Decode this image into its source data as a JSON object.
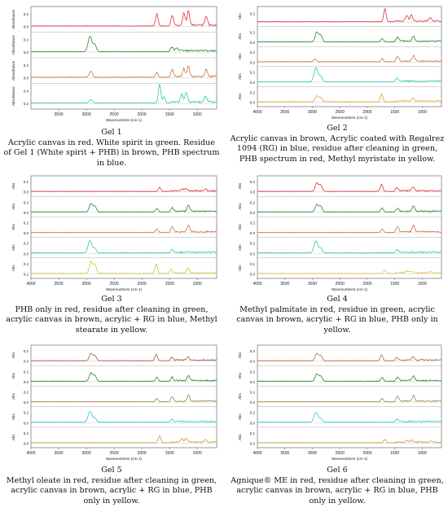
{
  "panels": [
    {
      "gel": "Gel 1",
      "caption": "Acrylic canvas in red. White spirit in green. Residue of Gel 1 (White spirit + PHB) in brown, PHB spectrum in blue.",
      "xlabel": "Wavenumbers (cm-1)",
      "xticks": [
        "3500",
        "3000",
        "2500",
        "2000",
        "1500",
        "1000"
      ],
      "ylabel": "Absorbance",
      "colors": [
        "#e0303a",
        "#1e8a2a",
        "#d2703a",
        "#25c8b0"
      ],
      "rows": [
        {
          "ylabel": "Absorbance",
          "yticks": [
            "0.2",
            "0.0"
          ]
        },
        {
          "ylabel": "Absorbance",
          "yticks": [
            "0.2",
            "0.0"
          ]
        },
        {
          "ylabel": "Absorbance",
          "yticks": [
            "0.2",
            "0.0"
          ]
        },
        {
          "ylabel": "Absorbance",
          "yticks": [
            "0.4",
            "0.2"
          ]
        }
      ]
    },
    {
      "gel": "Gel 2",
      "caption": "Acrylic canvas in brown, Acrylic coated with Regalrez 1094 (RG) in blue, residue after cleaning in green, PHB spectrum in red, Methyl myristate in yellow.",
      "xlabel": "Wavenumbers (cm-1)",
      "xticks": [
        "4000",
        "3500",
        "3000",
        "2500",
        "2000",
        "1500",
        "1000"
      ],
      "ylabel": "Abs",
      "colors": [
        "#e0303a",
        "#1e8a2a",
        "#d2703a",
        "#25c8b0",
        "#e8a020"
      ],
      "rows": [
        {
          "ylabel": "Abs",
          "yticks": [
            "0.2"
          ]
        },
        {
          "ylabel": "Abs",
          "yticks": [
            "0.2",
            "0.0"
          ]
        },
        {
          "ylabel": "Abs",
          "yticks": [
            "0.2",
            "0.0"
          ]
        },
        {
          "ylabel": "Abs",
          "yticks": [
            "0.2",
            "0.0"
          ]
        },
        {
          "ylabel": "Abs",
          "yticks": [
            "0.2",
            "0.0"
          ]
        }
      ]
    },
    {
      "gel": "Gel 3",
      "caption": "PHB only in red, residue after cleaning in green, acrylic canvas in brown, acrylic + RG in blue, Methyl stearate in yellow.",
      "xlabel": "Wavenumbers (cm-1)",
      "xticks": [
        "4000",
        "3500",
        "3000",
        "2500",
        "2000",
        "1500",
        "1000"
      ],
      "ylabel": "Abs",
      "colors": [
        "#e0303a",
        "#1e8a2a",
        "#d2703a",
        "#25c8b0",
        "#d8c030"
      ],
      "rows": [
        {
          "ylabel": "Abs",
          "yticks": [
            "0.1",
            "0.0"
          ]
        },
        {
          "ylabel": "Abs",
          "yticks": [
            "0.2",
            "0.0"
          ]
        },
        {
          "ylabel": "Abs",
          "yticks": [
            "0.2",
            "0.0"
          ]
        },
        {
          "ylabel": "Abs",
          "yticks": [
            "0.2",
            "0.0"
          ]
        },
        {
          "ylabel": "Abs",
          "yticks": [
            "0.4",
            "0.2"
          ]
        }
      ]
    },
    {
      "gel": "Gel 4",
      "caption": "Methyl palmitate in red, residue in green, acrylic canvas in brown, acrylic + RG in blue, PHB only in yellow.",
      "xlabel": "Wavenumbers (cm-1)",
      "xticks": [
        "4000",
        "3500",
        "3000",
        "2500",
        "2000",
        "1500",
        "1000"
      ],
      "ylabel": "Abs",
      "colors": [
        "#e0303a",
        "#1e8a2a",
        "#d2703a",
        "#25c8b0",
        "#e8c040"
      ],
      "rows": [
        {
          "ylabel": "Abs",
          "yticks": [
            "0.2",
            "0.0"
          ]
        },
        {
          "ylabel": "Abs",
          "yticks": [
            "0.2",
            "0.0"
          ]
        },
        {
          "ylabel": "Abs",
          "yticks": [
            "0.2",
            "0.0"
          ]
        },
        {
          "ylabel": "Abs",
          "yticks": [
            "0.2",
            "0.0"
          ]
        },
        {
          "ylabel": "Abs",
          "yticks": [
            "0.1",
            "0.0"
          ]
        }
      ]
    },
    {
      "gel": "Gel 5",
      "caption": "Methyl oleate in red, residue after cleaning in green, acrylic canvas in brown, acrylic + RG in blue, PHB only in yellow.",
      "xlabel": "Wavenumbers (cm-1)",
      "xticks": [
        "4000",
        "3500",
        "3000",
        "2500",
        "2000",
        "1500",
        "1000"
      ],
      "ylabel": "Abs",
      "colors": [
        "#9a5a3a",
        "#1e8a2a",
        "#a88040",
        "#25c8d0",
        "#c8a030"
      ],
      "rows": [
        {
          "ylabel": "Abs",
          "yticks": [
            "0.2",
            "0.0"
          ]
        },
        {
          "ylabel": "Abs",
          "yticks": [
            "0.2",
            "0.0"
          ]
        },
        {
          "ylabel": "Abs",
          "yticks": [
            "0.2",
            "0.0"
          ]
        },
        {
          "ylabel": "Abs",
          "yticks": [
            "0.2",
            "0.0"
          ]
        },
        {
          "ylabel": "Abs",
          "yticks": [
            "0.2",
            "0.0"
          ]
        }
      ]
    },
    {
      "gel": "Gel 6",
      "caption": "Agnique® ME in red, residue after cleaning in green, acrylic canvas in brown, acrylic + RG in blue, PHB only in yellow.",
      "xlabel": "Wavenumbers (cm-1)",
      "xticks": [
        "4000",
        "3500",
        "3000",
        "2500",
        "2000",
        "1500",
        "1000"
      ],
      "ylabel": "Abs",
      "colors": [
        "#b06a40",
        "#1e8a2a",
        "#a88040",
        "#25c8d0",
        "#c8a030"
      ],
      "rows": [
        {
          "ylabel": "Abs",
          "yticks": [
            "0.2",
            "0.0"
          ]
        },
        {
          "ylabel": "Abs",
          "yticks": [
            "0.2",
            "0.0"
          ]
        },
        {
          "ylabel": "Abs",
          "yticks": [
            "0.2",
            "0.0"
          ]
        },
        {
          "ylabel": "Abs",
          "yticks": [
            "0.2",
            "0.0"
          ]
        },
        {
          "ylabel": "Abs",
          "yticks": [
            "0.1",
            "0.0"
          ]
        }
      ]
    }
  ],
  "chart_data": [
    {
      "type": "line",
      "title": "",
      "xlabel": "Wavenumbers (cm-1)",
      "ylabel": "Absorbance",
      "xlim": [
        4000,
        650
      ],
      "series": [
        {
          "color": "#e0303a",
          "peaks": [
            [
              1730,
              0.3
            ],
            [
              1450,
              0.25
            ],
            [
              1240,
              0.3
            ],
            [
              1160,
              0.35
            ],
            [
              840,
              0.22
            ]
          ]
        },
        {
          "color": "#1e8a2a",
          "peaks": [
            [
              2955,
              0.2
            ],
            [
              2920,
              0.25
            ],
            [
              2850,
              0.18
            ],
            [
              1460,
              0.1
            ],
            [
              1375,
              0.08
            ]
          ]
        },
        {
          "color": "#d2703a",
          "peaks": [
            [
              2920,
              0.15
            ],
            [
              1730,
              0.12
            ],
            [
              1450,
              0.18
            ],
            [
              1240,
              0.2
            ],
            [
              1160,
              0.25
            ],
            [
              840,
              0.18
            ]
          ]
        },
        {
          "color": "#25c8b0",
          "peaks": [
            [
              2920,
              0.08
            ],
            [
              1680,
              0.45
            ],
            [
              1600,
              0.15
            ],
            [
              1280,
              0.2
            ],
            [
              1200,
              0.25
            ],
            [
              850,
              0.15
            ]
          ]
        }
      ]
    },
    {
      "type": "line",
      "title": "",
      "xlabel": "Wavenumbers (cm-1)",
      "ylabel": "Abs",
      "xlim": [
        4000,
        650
      ],
      "series": [
        {
          "color": "#e0303a",
          "peaks": [
            [
              1680,
              0.4
            ],
            [
              1280,
              0.18
            ],
            [
              1200,
              0.2
            ],
            [
              850,
              0.12
            ]
          ]
        },
        {
          "color": "#1e8a2a",
          "peaks": [
            [
              2920,
              0.3
            ],
            [
              2850,
              0.22
            ],
            [
              1730,
              0.1
            ],
            [
              1450,
              0.12
            ],
            [
              1160,
              0.15
            ]
          ]
        },
        {
          "color": "#d2703a",
          "peaks": [
            [
              2950,
              0.08
            ],
            [
              1730,
              0.1
            ],
            [
              1450,
              0.14
            ],
            [
              1160,
              0.18
            ]
          ]
        },
        {
          "color": "#25c8b0",
          "peaks": [
            [
              2955,
              0.25
            ],
            [
              2920,
              0.28
            ],
            [
              2850,
              0.18
            ],
            [
              1460,
              0.1
            ]
          ]
        },
        {
          "color": "#e8a020",
          "peaks": [
            [
              2920,
              0.18
            ],
            [
              2850,
              0.14
            ],
            [
              1740,
              0.25
            ],
            [
              1170,
              0.1
            ]
          ]
        }
      ]
    },
    {
      "type": "line",
      "title": "",
      "xlabel": "Wavenumbers (cm-1)",
      "ylabel": "Abs",
      "xlim": [
        4000,
        650
      ],
      "series": [
        {
          "color": "#e0303a",
          "peaks": [
            [
              1680,
              0.12
            ],
            [
              1280,
              0.06
            ],
            [
              1200,
              0.07
            ],
            [
              850,
              0.05
            ]
          ]
        },
        {
          "color": "#1e8a2a",
          "peaks": [
            [
              2920,
              0.25
            ],
            [
              2850,
              0.18
            ],
            [
              1730,
              0.1
            ],
            [
              1450,
              0.12
            ],
            [
              1160,
              0.18
            ]
          ]
        },
        {
          "color": "#d2703a",
          "peaks": [
            [
              1730,
              0.1
            ],
            [
              1450,
              0.15
            ],
            [
              1160,
              0.2
            ]
          ]
        },
        {
          "color": "#25c8b0",
          "peaks": [
            [
              2955,
              0.2
            ],
            [
              2920,
              0.25
            ],
            [
              2850,
              0.15
            ],
            [
              1460,
              0.08
            ]
          ]
        },
        {
          "color": "#d8c030",
          "peaks": [
            [
              2920,
              0.35
            ],
            [
              2850,
              0.28
            ],
            [
              1740,
              0.3
            ],
            [
              1470,
              0.12
            ],
            [
              1170,
              0.15
            ]
          ]
        }
      ]
    },
    {
      "type": "line",
      "title": "",
      "xlabel": "Wavenumbers (cm-1)",
      "ylabel": "Abs",
      "xlim": [
        4000,
        650
      ],
      "series": [
        {
          "color": "#e0303a",
          "peaks": [
            [
              2920,
              0.25
            ],
            [
              2850,
              0.2
            ],
            [
              1740,
              0.22
            ],
            [
              1460,
              0.1
            ],
            [
              1170,
              0.12
            ]
          ]
        },
        {
          "color": "#1e8a2a",
          "peaks": [
            [
              2920,
              0.22
            ],
            [
              2850,
              0.18
            ],
            [
              1730,
              0.12
            ],
            [
              1450,
              0.1
            ],
            [
              1160,
              0.15
            ]
          ]
        },
        {
          "color": "#d2703a",
          "peaks": [
            [
              1730,
              0.1
            ],
            [
              1450,
              0.15
            ],
            [
              1160,
              0.2
            ]
          ]
        },
        {
          "color": "#25c8b0",
          "peaks": [
            [
              2955,
              0.2
            ],
            [
              2920,
              0.24
            ],
            [
              2850,
              0.15
            ],
            [
              1460,
              0.08
            ]
          ]
        },
        {
          "color": "#e8c040",
          "peaks": [
            [
              1680,
              0.1
            ],
            [
              1280,
              0.05
            ],
            [
              1200,
              0.06
            ],
            [
              850,
              0.04
            ]
          ]
        }
      ]
    },
    {
      "type": "line",
      "title": "",
      "xlabel": "Wavenumbers (cm-1)",
      "ylabel": "Abs",
      "xlim": [
        4000,
        650
      ],
      "series": [
        {
          "color": "#9a5a3a",
          "peaks": [
            [
              2920,
              0.22
            ],
            [
              2850,
              0.16
            ],
            [
              1740,
              0.2
            ],
            [
              1460,
              0.08
            ],
            [
              1170,
              0.1
            ]
          ]
        },
        {
          "color": "#1e8a2a",
          "peaks": [
            [
              2920,
              0.25
            ],
            [
              2850,
              0.18
            ],
            [
              1730,
              0.12
            ],
            [
              1450,
              0.1
            ],
            [
              1160,
              0.15
            ]
          ]
        },
        {
          "color": "#a88040",
          "peaks": [
            [
              1730,
              0.1
            ],
            [
              1450,
              0.14
            ],
            [
              1160,
              0.18
            ]
          ]
        },
        {
          "color": "#25c8d0",
          "peaks": [
            [
              2955,
              0.18
            ],
            [
              2920,
              0.22
            ],
            [
              2850,
              0.14
            ],
            [
              1460,
              0.08
            ]
          ]
        },
        {
          "color": "#c8a030",
          "peaks": [
            [
              1680,
              0.22
            ],
            [
              1280,
              0.1
            ],
            [
              1200,
              0.12
            ],
            [
              850,
              0.08
            ]
          ]
        }
      ]
    },
    {
      "type": "line",
      "title": "",
      "xlabel": "Wavenumbers (cm-1)",
      "ylabel": "Abs",
      "xlim": [
        4000,
        650
      ],
      "series": [
        {
          "color": "#b06a40",
          "peaks": [
            [
              2920,
              0.22
            ],
            [
              2850,
              0.16
            ],
            [
              1740,
              0.18
            ],
            [
              1460,
              0.08
            ],
            [
              1170,
              0.1
            ]
          ]
        },
        {
          "color": "#1e8a2a",
          "peaks": [
            [
              2920,
              0.22
            ],
            [
              2850,
              0.16
            ],
            [
              1730,
              0.12
            ],
            [
              1450,
              0.1
            ],
            [
              1160,
              0.14
            ]
          ]
        },
        {
          "color": "#a88040",
          "peaks": [
            [
              1730,
              0.1
            ],
            [
              1450,
              0.14
            ],
            [
              1160,
              0.18
            ]
          ]
        },
        {
          "color": "#25c8d0",
          "peaks": [
            [
              2955,
              0.16
            ],
            [
              2920,
              0.2
            ],
            [
              2850,
              0.12
            ],
            [
              1460,
              0.08
            ]
          ]
        },
        {
          "color": "#c8a030",
          "peaks": [
            [
              1680,
              0.1
            ],
            [
              1280,
              0.05
            ],
            [
              1200,
              0.06
            ],
            [
              850,
              0.04
            ]
          ]
        }
      ]
    }
  ]
}
